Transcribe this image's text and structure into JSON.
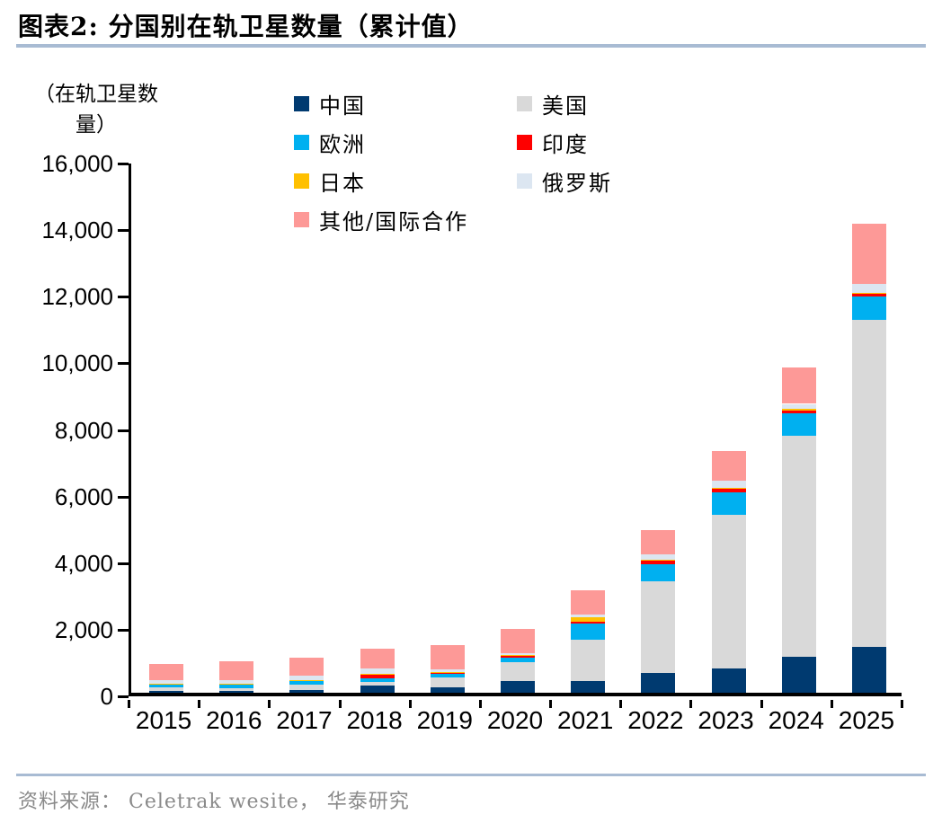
{
  "header": {
    "figure_label": "图表2:",
    "title": "分国别在轨卫星数量（累计值）",
    "full_title": "图表2:  分国别在轨卫星数量（累计值）"
  },
  "footer": {
    "source_text": "资料来源： Celetrak wesite， 华泰研究"
  },
  "colors": {
    "title_rule": "#A8BBD3",
    "source_rule": "#A8BBD3",
    "axis": "#000000",
    "source_text_color": "#8A8A8A"
  },
  "chart_data": {
    "type": "bar",
    "stacked": true,
    "title": "分国别在轨卫星数量（累计值）",
    "y_axis_unit_lines": [
      "（在轨卫星数",
      "量）"
    ],
    "xlabel": "",
    "ylabel": "在轨卫星数量",
    "ylim": [
      0,
      16000
    ],
    "y_tick_interval": 2000,
    "y_tick_labels": [
      "0",
      "2,000",
      "4,000",
      "6,000",
      "8,000",
      "10,000",
      "12,000",
      "14,000",
      "16,000"
    ],
    "grid": false,
    "legend_position": "top",
    "legend_columns": 2,
    "categories": [
      "2015",
      "2016",
      "2017",
      "2018",
      "2019",
      "2020",
      "2021",
      "2022",
      "2023",
      "2024",
      "2025"
    ],
    "series": [
      {
        "name": "中国",
        "color": "#003A70",
        "values": [
          50,
          50,
          70,
          205,
          160,
          340,
          340,
          595,
          730,
          1070,
          1385
        ]
      },
      {
        "name": "美国",
        "color": "#D9D9D9",
        "values": [
          110,
          95,
          175,
          125,
          300,
          575,
          1260,
          2745,
          4600,
          6650,
          9810
        ]
      },
      {
        "name": "欧洲",
        "color": "#00B0F0",
        "values": [
          105,
          105,
          125,
          115,
          110,
          135,
          485,
          520,
          695,
          665,
          695
        ]
      },
      {
        "name": "印度",
        "color": "#FE0000",
        "values": [
          5,
          10,
          10,
          110,
          45,
          70,
          60,
          110,
          110,
          100,
          90
        ]
      },
      {
        "name": "日本",
        "color": "#FFC000",
        "values": [
          5,
          5,
          10,
          10,
          10,
          15,
          110,
          30,
          30,
          35,
          40
        ]
      },
      {
        "name": "俄罗斯",
        "color": "#DCE6F1",
        "values": [
          110,
          125,
          125,
          160,
          80,
          65,
          80,
          160,
          215,
          155,
          270
        ]
      },
      {
        "name": "其他/国际合作",
        "color": "#FD9997",
        "values": [
          485,
          545,
          535,
          610,
          730,
          720,
          735,
          715,
          880,
          1105,
          1790
        ]
      }
    ],
    "totals": [
      870,
      935,
      1050,
      1335,
      1435,
      1920,
      3070,
      4875,
      7260,
      9780,
      14080
    ]
  }
}
